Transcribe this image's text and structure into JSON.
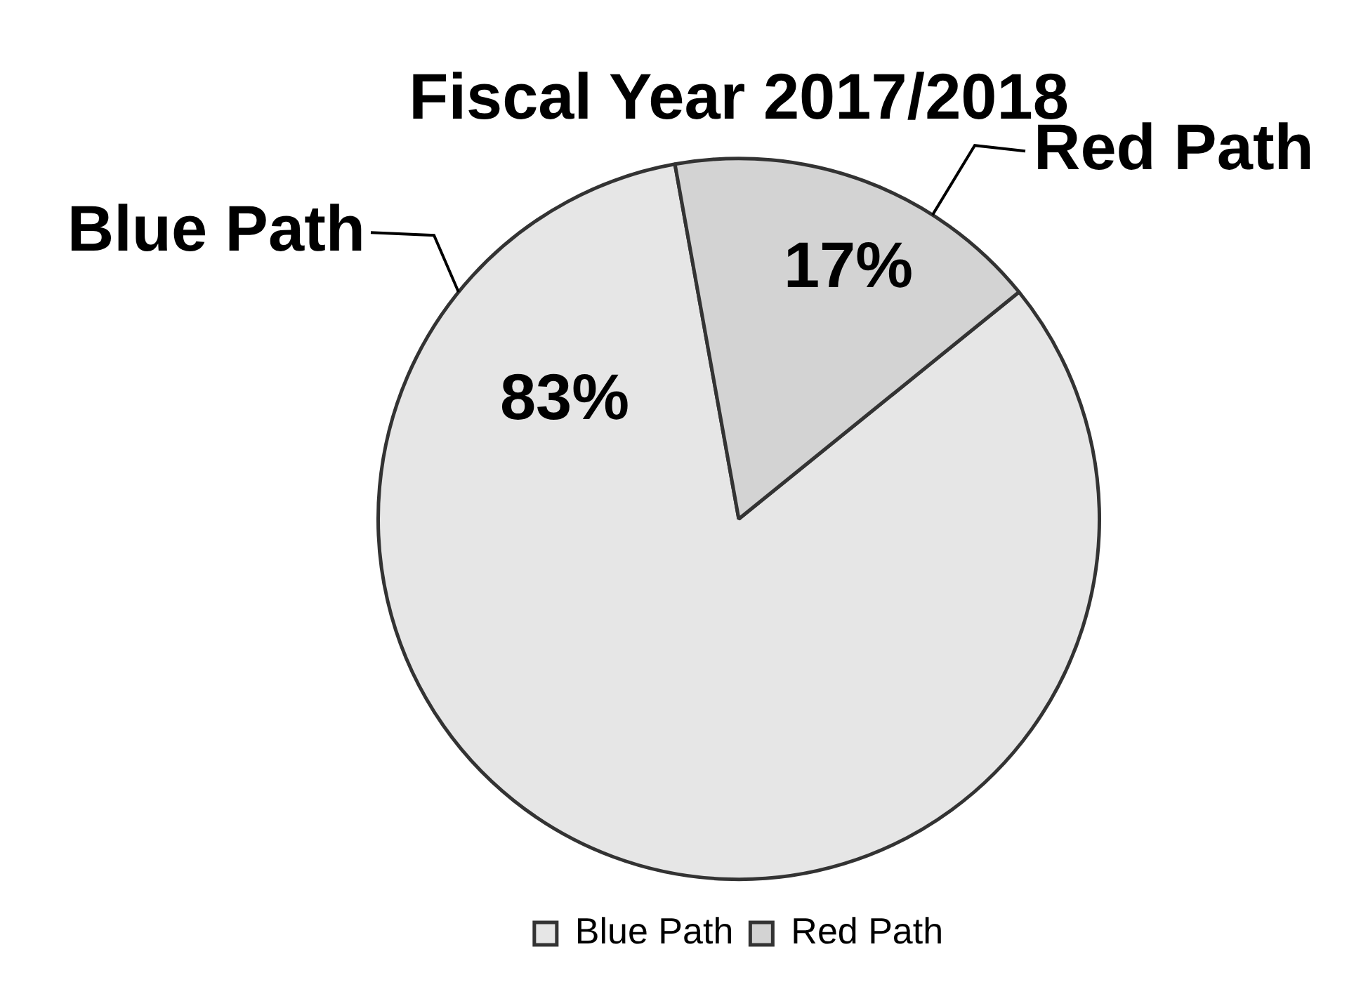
{
  "chart_data": {
    "type": "pie",
    "title": "Fiscal Year 2017/2018",
    "categories": [
      "Blue Path",
      "Red Path"
    ],
    "values": [
      83,
      17
    ],
    "value_labels": [
      "83%",
      "17%"
    ],
    "colors": [
      "#e6e6e6",
      "#d3d3d3"
    ],
    "legend": "bottom"
  }
}
